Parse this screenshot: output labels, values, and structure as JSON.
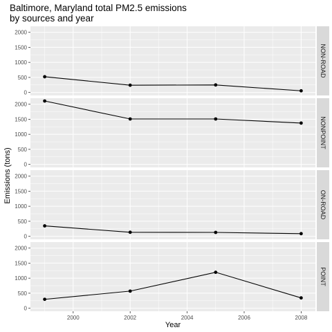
{
  "chart_data": {
    "type": "line",
    "title": "Baltimore, Maryland total PM2.5 emissions\nby sources and year",
    "xlabel": "Year",
    "ylabel": "Emissions (tons)",
    "x_ticks": [
      2000,
      2002,
      2004,
      2006,
      2008
    ],
    "y_ticks": [
      0,
      500,
      1000,
      1500,
      2000
    ],
    "xlim": [
      1998.5,
      2008.5
    ],
    "ylim": [
      -100,
      2200
    ],
    "x": [
      1999,
      2002,
      2005,
      2008
    ],
    "facets": [
      {
        "name": "NON-ROAD",
        "values": [
          522,
          241,
          249,
          55
        ]
      },
      {
        "name": "NONPOINT",
        "values": [
          2108,
          1510,
          1510,
          1374
        ]
      },
      {
        "name": "ON-ROAD",
        "values": [
          347,
          134,
          130,
          88
        ]
      },
      {
        "name": "POINT",
        "values": [
          297,
          570,
          1196,
          344
        ]
      }
    ]
  }
}
